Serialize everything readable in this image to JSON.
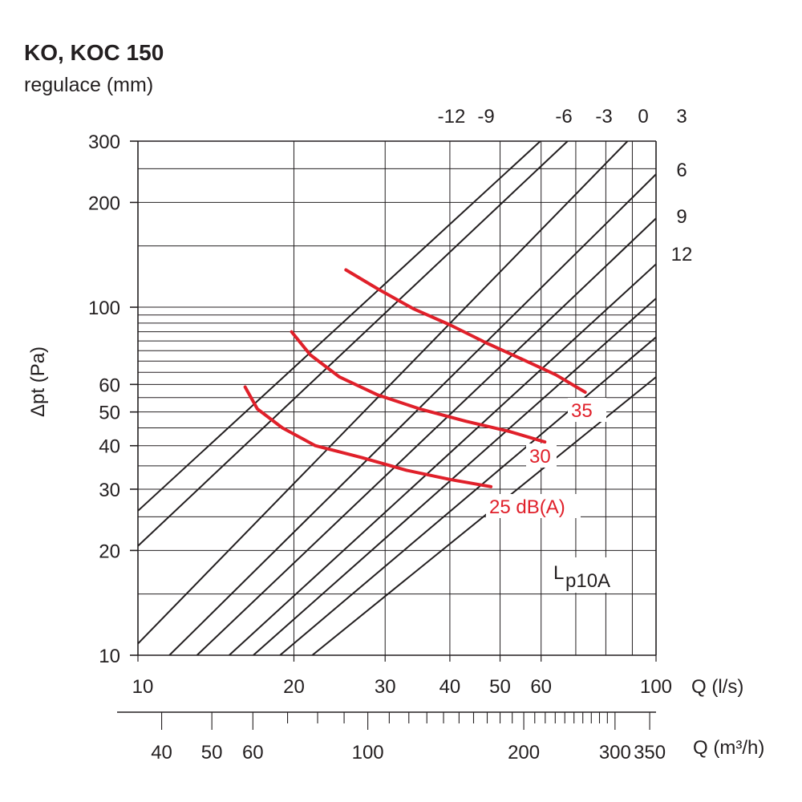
{
  "chart_data": {
    "type": "line",
    "title": "KO, KOC 150",
    "subtitle": "regulace (mm)",
    "xlabel": "Q (l/s)",
    "x2label": "Q (m³/h)",
    "ylabel": "Δpt (Pa)",
    "x_scale": "log",
    "y_scale": "log",
    "xlim": [
      10,
      100
    ],
    "ylim": [
      10,
      300
    ],
    "x_ticks": [
      10,
      20,
      30,
      40,
      50,
      60,
      100
    ],
    "x_tick_labels": [
      "10",
      "20",
      "30",
      "40",
      "50",
      "60",
      "100"
    ],
    "x2_ticks": [
      40,
      50,
      60,
      100,
      200,
      300,
      350
    ],
    "x2_tick_labels": [
      "40",
      "50",
      "60",
      "100",
      "200",
      "300",
      "350"
    ],
    "y_ticks": [
      10,
      20,
      30,
      40,
      50,
      60,
      100,
      200,
      300
    ],
    "y_tick_labels": [
      "10",
      "20",
      "30",
      "40",
      "50",
      "60",
      "100",
      "200",
      "300"
    ],
    "grid": true,
    "regulation_lines": {
      "labels": [
        "-12",
        "-9",
        "-6",
        "-3",
        "0",
        "3",
        "6",
        "9",
        "12"
      ],
      "exponent": 2,
      "series": [
        {
          "name": "-12",
          "x": [
            10,
            59.8
          ],
          "y": [
            26.0,
            300
          ]
        },
        {
          "name": "-9",
          "x": [
            10,
            67.5
          ],
          "y": [
            20.6,
            300
          ]
        },
        {
          "name": "-6",
          "x": [
            10,
            88.1
          ],
          "y": [
            10.8,
            300
          ]
        },
        {
          "name": "-3",
          "x": [
            11.5,
            100
          ],
          "y": [
            10,
            241
          ]
        },
        {
          "name": "0",
          "x": [
            13.0,
            100
          ],
          "y": [
            10,
            180
          ]
        },
        {
          "name": "3",
          "x": [
            15.0,
            100
          ],
          "y": [
            10,
            133
          ]
        },
        {
          "name": "6",
          "x": [
            16.7,
            100
          ],
          "y": [
            10,
            106
          ]
        },
        {
          "name": "9",
          "x": [
            18.8,
            100
          ],
          "y": [
            10,
            82
          ]
        },
        {
          "name": "12",
          "x": [
            21.7,
            100
          ],
          "y": [
            10,
            63
          ]
        }
      ]
    },
    "series": [
      {
        "name": "35",
        "color": "#e0202a",
        "x": [
          25.2,
          29,
          34,
          40,
          47,
          55,
          64,
          73
        ],
        "y": [
          128,
          113,
          99,
          89,
          79,
          71,
          64,
          57
        ]
      },
      {
        "name": "30",
        "color": "#e0202a",
        "x": [
          19.8,
          21.5,
          24.5,
          29,
          35,
          43,
          52,
          61
        ],
        "y": [
          85,
          73,
          63,
          56,
          51,
          47,
          44,
          41
        ]
      },
      {
        "name": "25 dB(A)",
        "color": "#e0202a",
        "x": [
          16.1,
          17.0,
          19.0,
          22,
          27,
          33,
          40,
          48
        ],
        "y": [
          59,
          51,
          45,
          40,
          37,
          34,
          32,
          30.5
        ]
      }
    ],
    "annotations": {
      "lp": "L",
      "lp_sub": "p10A"
    }
  }
}
